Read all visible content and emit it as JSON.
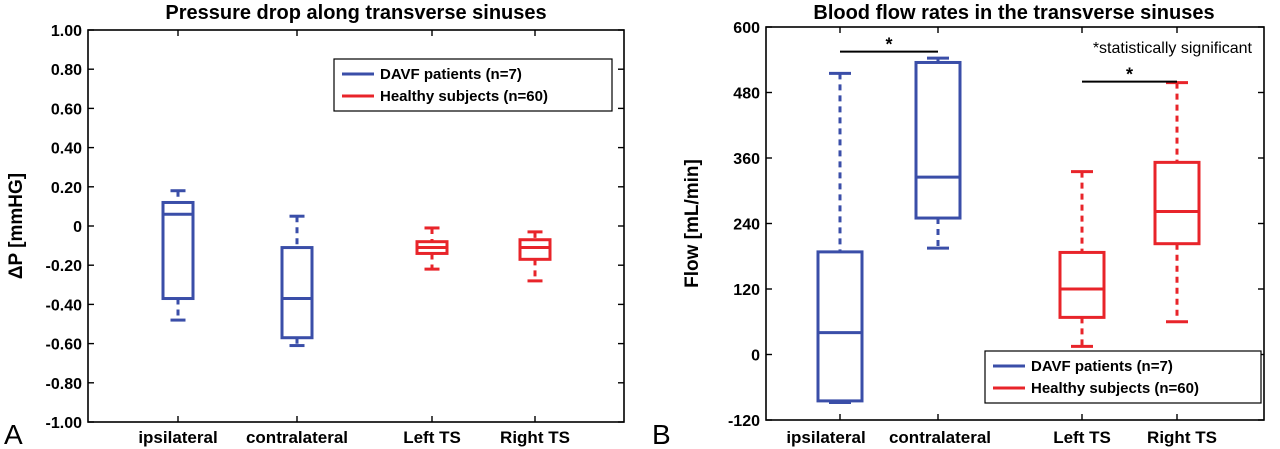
{
  "colors": {
    "davf": "#3a4ea8",
    "healthy": "#e8242a",
    "axis": "#000000"
  },
  "chart_data": [
    {
      "type": "box",
      "panel_label": "A",
      "title": "Pressure drop along transverse sinuses",
      "ylabel": "ΔP [mmHG]",
      "xlabel": "",
      "ylim": [
        -1.0,
        1.0
      ],
      "yticks": [
        -1.0,
        -0.8,
        -0.6,
        -0.4,
        -0.2,
        0,
        0.2,
        0.4,
        0.6,
        0.8,
        1.0
      ],
      "ytick_labels": [
        "-1.00",
        "-0.80",
        "-0.60",
        "-0.40",
        "-0.20",
        "0",
        "0.20",
        "0.40",
        "0.60",
        "0.80",
        "1.00"
      ],
      "categories": [
        "ipsilateral",
        "contralateral",
        "Left TS",
        "Right TS"
      ],
      "legend": [
        {
          "name": "DAVF patients (n=7)",
          "color": "#3a4ea8"
        },
        {
          "name": "Healthy subjects (n=60)",
          "color": "#e8242a"
        }
      ],
      "legend_position": "top-right",
      "boxes": [
        {
          "category": "ipsilateral",
          "group": "DAVF patients (n=7)",
          "min": -0.48,
          "q1": -0.37,
          "median": 0.06,
          "q3": 0.12,
          "max": 0.18
        },
        {
          "category": "contralateral",
          "group": "DAVF patients (n=7)",
          "min": -0.61,
          "q1": -0.57,
          "median": -0.37,
          "q3": -0.11,
          "max": 0.05
        },
        {
          "category": "Left TS",
          "group": "Healthy subjects (n=60)",
          "min": -0.22,
          "q1": -0.14,
          "median": -0.11,
          "q3": -0.08,
          "max": -0.01
        },
        {
          "category": "Right TS",
          "group": "Healthy subjects (n=60)",
          "min": -0.28,
          "q1": -0.17,
          "median": -0.11,
          "q3": -0.07,
          "max": -0.03
        }
      ]
    },
    {
      "type": "box",
      "panel_label": "B",
      "title": "Blood flow rates in the transverse sinuses",
      "ylabel": "Flow [mL/min]",
      "xlabel": "",
      "ylim": [
        -120,
        600
      ],
      "yticks": [
        -120,
        0,
        120,
        240,
        360,
        480,
        600
      ],
      "ytick_labels": [
        "-120",
        "0",
        "120",
        "240",
        "360",
        "480",
        "600"
      ],
      "categories": [
        "ipsilateral",
        "contralateral",
        "Left TS",
        "Right TS"
      ],
      "legend": [
        {
          "name": "DAVF patients (n=7)",
          "color": "#3a4ea8"
        },
        {
          "name": "Healthy subjects (n=60)",
          "color": "#e8242a"
        }
      ],
      "legend_position": "bottom-right",
      "annotation": "*statistically significant",
      "significance": [
        {
          "from": "ipsilateral",
          "to": "contralateral",
          "label": "*",
          "y": 555
        },
        {
          "from": "Left TS",
          "to": "Right TS",
          "label": "*",
          "y": 500
        }
      ],
      "boxes": [
        {
          "category": "ipsilateral",
          "group": "DAVF patients (n=7)",
          "min": -88,
          "q1": -85,
          "median": 40,
          "q3": 188,
          "max": 515
        },
        {
          "category": "contralateral",
          "group": "DAVF patients (n=7)",
          "min": 195,
          "q1": 250,
          "median": 325,
          "q3": 535,
          "max": 543
        },
        {
          "category": "Left TS",
          "group": "Healthy subjects (n=60)",
          "min": 15,
          "q1": 68,
          "median": 120,
          "q3": 187,
          "max": 335
        },
        {
          "category": "Right TS",
          "group": "Healthy subjects (n=60)",
          "min": 60,
          "q1": 203,
          "median": 262,
          "q3": 352,
          "max": 498
        }
      ]
    }
  ]
}
